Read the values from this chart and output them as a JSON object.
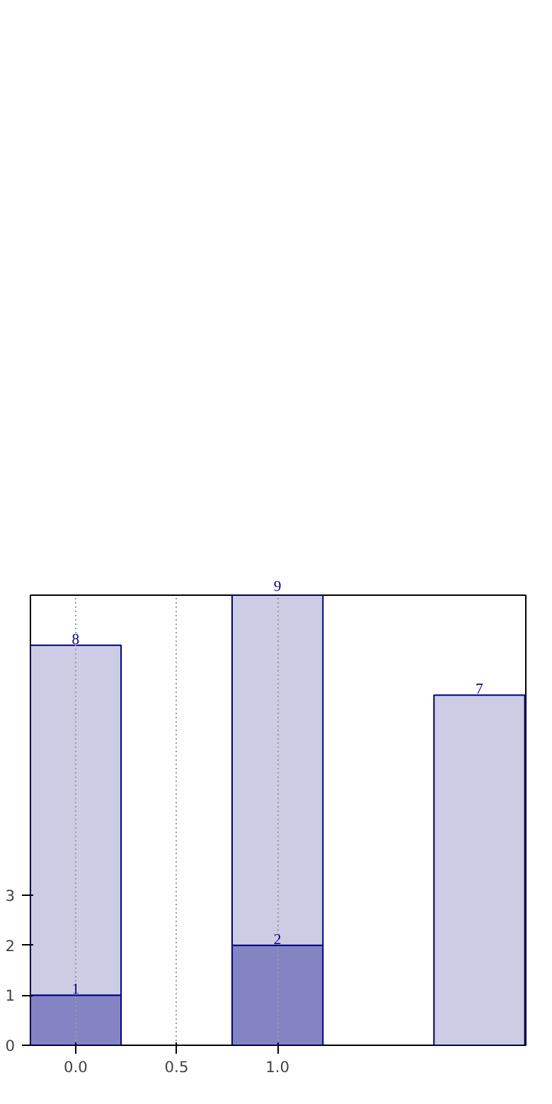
{
  "chart_data": {
    "type": "bar",
    "stacked": true,
    "x": [
      0,
      1,
      2
    ],
    "xlim": [
      -0.224,
      2.23
    ],
    "xticks": [
      {
        "value": 0,
        "label": "0.0"
      },
      {
        "value": 0.5,
        "label": "0.5"
      },
      {
        "value": 1,
        "label": "1.0"
      }
    ],
    "ylim": [
      0,
      9
    ],
    "yticks": [
      0,
      1,
      2,
      3
    ],
    "grid": "x",
    "series": [
      {
        "color": "#8484c4",
        "values": [
          1,
          2,
          null
        ],
        "value_labels": [
          "1",
          "2",
          null
        ]
      },
      {
        "color": "#cccce4",
        "values": [
          7,
          7,
          7
        ]
      }
    ],
    "totals": [
      "8",
      "9",
      "7"
    ]
  }
}
